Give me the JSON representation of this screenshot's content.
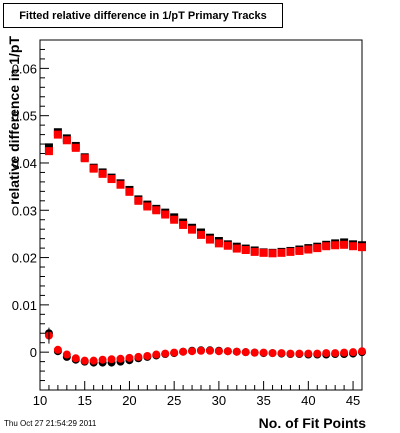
{
  "chart_data": {
    "type": "scatter",
    "title": "Fitted relative difference in 1/pT Primary Tracks",
    "xlabel": "No. of Fit Points",
    "ylabel": "relative difference in 1/pT",
    "xlim": [
      10,
      46
    ],
    "ylim": [
      -0.008,
      0.066
    ],
    "x_ticks": [
      10,
      15,
      20,
      25,
      30,
      35,
      40,
      45
    ],
    "y_ticks": [
      0,
      0.01,
      0.02,
      0.03,
      0.04,
      0.05,
      0.06
    ],
    "y_tick_labels": [
      "0",
      "0.01",
      "0.02",
      "0.03",
      "0.04",
      "0.05",
      "0.06"
    ],
    "grid": false,
    "legend": "none",
    "footer": "Thu Oct 27 21:54:29 2011",
    "colors": {
      "black": "#000000",
      "red": "#ff0000",
      "border": "#000000"
    },
    "series": [
      {
        "marker": "square",
        "color": "#000000",
        "group": "upper",
        "x": [
          11,
          12,
          13,
          14,
          15,
          16,
          17,
          18,
          19,
          20,
          21,
          22,
          23,
          24,
          25,
          26,
          27,
          28,
          29,
          30,
          31,
          32,
          33,
          34,
          35,
          36,
          37,
          38,
          39,
          40,
          41,
          42,
          43,
          44,
          45,
          46
        ],
        "y": [
          0.0433,
          0.0465,
          0.0452,
          0.0436,
          0.0412,
          0.039,
          0.038,
          0.0369,
          0.0357,
          0.0343,
          0.0323,
          0.0312,
          0.0303,
          0.0295,
          0.0285,
          0.0274,
          0.0263,
          0.0253,
          0.0242,
          0.0235,
          0.0228,
          0.0223,
          0.0219,
          0.0215,
          0.0211,
          0.021,
          0.0212,
          0.0214,
          0.0217,
          0.022,
          0.0223,
          0.0227,
          0.023,
          0.0232,
          0.0228,
          0.0226
        ]
      },
      {
        "marker": "square",
        "color": "#ff0000",
        "group": "upper",
        "x": [
          11,
          12,
          13,
          14,
          15,
          16,
          17,
          18,
          19,
          20,
          21,
          22,
          23,
          24,
          25,
          26,
          27,
          28,
          29,
          30,
          31,
          32,
          33,
          34,
          35,
          36,
          37,
          38,
          39,
          40,
          41,
          42,
          43,
          44,
          45,
          46
        ],
        "y": [
          0.0425,
          0.046,
          0.0448,
          0.0432,
          0.041,
          0.0388,
          0.0377,
          0.0366,
          0.0354,
          0.0339,
          0.032,
          0.0308,
          0.03,
          0.0291,
          0.028,
          0.0269,
          0.0259,
          0.0248,
          0.0238,
          0.023,
          0.0225,
          0.0219,
          0.0216,
          0.0212,
          0.021,
          0.0209,
          0.021,
          0.0212,
          0.0214,
          0.0217,
          0.022,
          0.0224,
          0.0226,
          0.0227,
          0.0224,
          0.0222
        ]
      },
      {
        "marker": "circle",
        "color": "#000000",
        "group": "lower",
        "x": [
          11,
          12,
          13,
          14,
          15,
          16,
          17,
          18,
          19,
          20,
          21,
          22,
          23,
          24,
          25,
          26,
          27,
          28,
          29,
          30,
          31,
          32,
          33,
          34,
          35,
          36,
          37,
          38,
          39,
          40,
          41,
          42,
          43,
          44,
          45,
          46
        ],
        "y": [
          0.004,
          0.0002,
          -0.001,
          -0.0016,
          -0.002,
          -0.0022,
          -0.0022,
          -0.0022,
          -0.002,
          -0.0017,
          -0.0013,
          -0.001,
          -0.0007,
          -0.0004,
          -0.0002,
          0.0001,
          0.0003,
          0.0004,
          0.0004,
          0.0003,
          0.0002,
          0.0001,
          0.0,
          -0.0001,
          -0.0002,
          -0.0002,
          -0.0003,
          -0.0004,
          -0.0004,
          -0.0005,
          -0.0005,
          -0.0005,
          -0.0004,
          -0.0004,
          -0.0003,
          0.0
        ]
      },
      {
        "marker": "circle",
        "color": "#ff0000",
        "group": "lower",
        "x": [
          11,
          12,
          13,
          14,
          15,
          16,
          17,
          18,
          19,
          20,
          21,
          22,
          23,
          24,
          25,
          26,
          27,
          28,
          29,
          30,
          31,
          32,
          33,
          34,
          35,
          36,
          37,
          38,
          39,
          40,
          41,
          42,
          43,
          44,
          45,
          46
        ],
        "y": [
          0.0035,
          0.0005,
          -0.0005,
          -0.0013,
          -0.0018,
          -0.0018,
          -0.0016,
          -0.0015,
          -0.0014,
          -0.0012,
          -0.001,
          -0.0008,
          -0.0005,
          -0.0003,
          -0.0001,
          0.0001,
          0.0002,
          0.0003,
          0.0003,
          0.0002,
          0.0002,
          0.0001,
          0.0,
          -0.0001,
          -0.0001,
          -0.0002,
          -0.0002,
          -0.0003,
          -0.0003,
          -0.0003,
          -0.0003,
          -0.0002,
          -0.0002,
          -0.0001,
          0.0,
          0.0002
        ]
      }
    ]
  }
}
